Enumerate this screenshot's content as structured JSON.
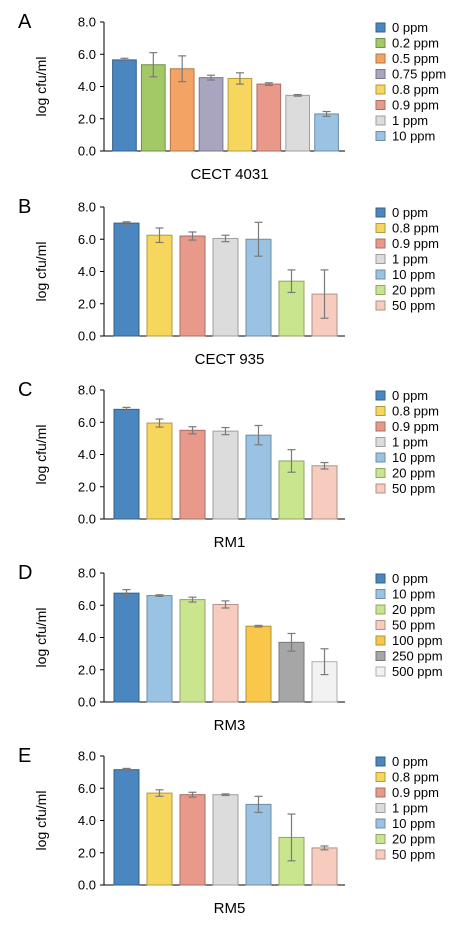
{
  "chart_data": [
    {
      "type": "bar",
      "panel": "A",
      "xlabel": "CECT 4031",
      "ylabel": "log cfu/ml",
      "ylim": [
        0,
        8
      ],
      "yticks": [
        "0.0",
        "2.0",
        "4.0",
        "6.0",
        "8.0"
      ],
      "grid": false,
      "legend_position": "right",
      "categories": [
        "0 ppm",
        "0.2 ppm",
        "0.5 ppm",
        "0.75 ppm",
        "0.8 ppm",
        "0.9 ppm",
        "1 ppm",
        "10 ppm"
      ],
      "values": [
        5.65,
        5.35,
        5.1,
        4.55,
        4.5,
        4.15,
        3.45,
        2.3
      ],
      "errors": [
        0.1,
        0.75,
        0.8,
        0.15,
        0.35,
        0.08,
        0.05,
        0.15
      ],
      "colors": [
        "#4a86c0",
        "#a3c866",
        "#f3a464",
        "#a9a4c0",
        "#f7d65e",
        "#e8998a",
        "#dcdcdc",
        "#9ac2e2"
      ]
    },
    {
      "type": "bar",
      "panel": "B",
      "xlabel": "CECT 935",
      "ylabel": "log cfu/ml",
      "ylim": [
        0,
        8
      ],
      "yticks": [
        "0.0",
        "2.0",
        "4.0",
        "6.0",
        "8.0"
      ],
      "grid": false,
      "legend_position": "right",
      "categories": [
        "0 ppm",
        "0.8 ppm",
        "0.9 ppm",
        "1 ppm",
        "10 ppm",
        "20 ppm",
        "50 ppm"
      ],
      "values": [
        7.0,
        6.25,
        6.2,
        6.05,
        6.0,
        3.4,
        2.6
      ],
      "errors": [
        0.08,
        0.45,
        0.25,
        0.2,
        1.05,
        0.7,
        1.5
      ],
      "colors": [
        "#4a86c0",
        "#f7d65e",
        "#e8998a",
        "#dcdcdc",
        "#9ac2e2",
        "#c9e58d",
        "#f7cbbd"
      ]
    },
    {
      "type": "bar",
      "panel": "C",
      "xlabel": "RM1",
      "ylabel": "log cfu/ml",
      "ylim": [
        0,
        8
      ],
      "yticks": [
        "0.0",
        "2.0",
        "4.0",
        "6.0",
        "8.0"
      ],
      "grid": false,
      "legend_position": "right",
      "categories": [
        "0 ppm",
        "0.8 ppm",
        "0.9 ppm",
        "1 ppm",
        "10 ppm",
        "20 ppm",
        "50 ppm"
      ],
      "values": [
        6.8,
        5.95,
        5.5,
        5.45,
        5.2,
        3.6,
        3.3
      ],
      "errors": [
        0.12,
        0.25,
        0.22,
        0.22,
        0.6,
        0.7,
        0.2
      ],
      "colors": [
        "#4a86c0",
        "#f7d65e",
        "#e8998a",
        "#dcdcdc",
        "#9ac2e2",
        "#c9e58d",
        "#f7cbbd"
      ]
    },
    {
      "type": "bar",
      "panel": "D",
      "xlabel": "RM3",
      "ylabel": "log cfu/ml",
      "ylim": [
        0,
        8
      ],
      "yticks": [
        "0.0",
        "2.0",
        "4.0",
        "6.0",
        "8.0"
      ],
      "grid": false,
      "legend_position": "right",
      "categories": [
        "0 ppm",
        "10 ppm",
        "20 ppm",
        "50 ppm",
        "100 ppm",
        "250 ppm",
        "500 ppm"
      ],
      "values": [
        6.75,
        6.6,
        6.35,
        6.05,
        4.7,
        3.7,
        2.5
      ],
      "errors": [
        0.22,
        0.05,
        0.15,
        0.22,
        0.05,
        0.55,
        0.8
      ],
      "colors": [
        "#4a86c0",
        "#9ac2e2",
        "#c9e58d",
        "#f7cbbd",
        "#f9c84a",
        "#a6a6a6",
        "#f2f2f2"
      ]
    },
    {
      "type": "bar",
      "panel": "E",
      "xlabel": "RM5",
      "ylabel": "log cfu/ml",
      "ylim": [
        0,
        8
      ],
      "yticks": [
        "0.0",
        "2.0",
        "4.0",
        "6.0",
        "8.0"
      ],
      "grid": false,
      "legend_position": "right",
      "categories": [
        "0 ppm",
        "0.8 ppm",
        "0.9 ppm",
        "1 ppm",
        "10 ppm",
        "20 ppm",
        "50 ppm"
      ],
      "values": [
        7.15,
        5.7,
        5.6,
        5.6,
        5.0,
        2.95,
        2.3
      ],
      "errors": [
        0.08,
        0.2,
        0.15,
        0.05,
        0.5,
        1.45,
        0.12
      ],
      "colors": [
        "#4a86c0",
        "#f7d65e",
        "#e8998a",
        "#dcdcdc",
        "#9ac2e2",
        "#c9e58d",
        "#f7cbbd"
      ]
    }
  ]
}
